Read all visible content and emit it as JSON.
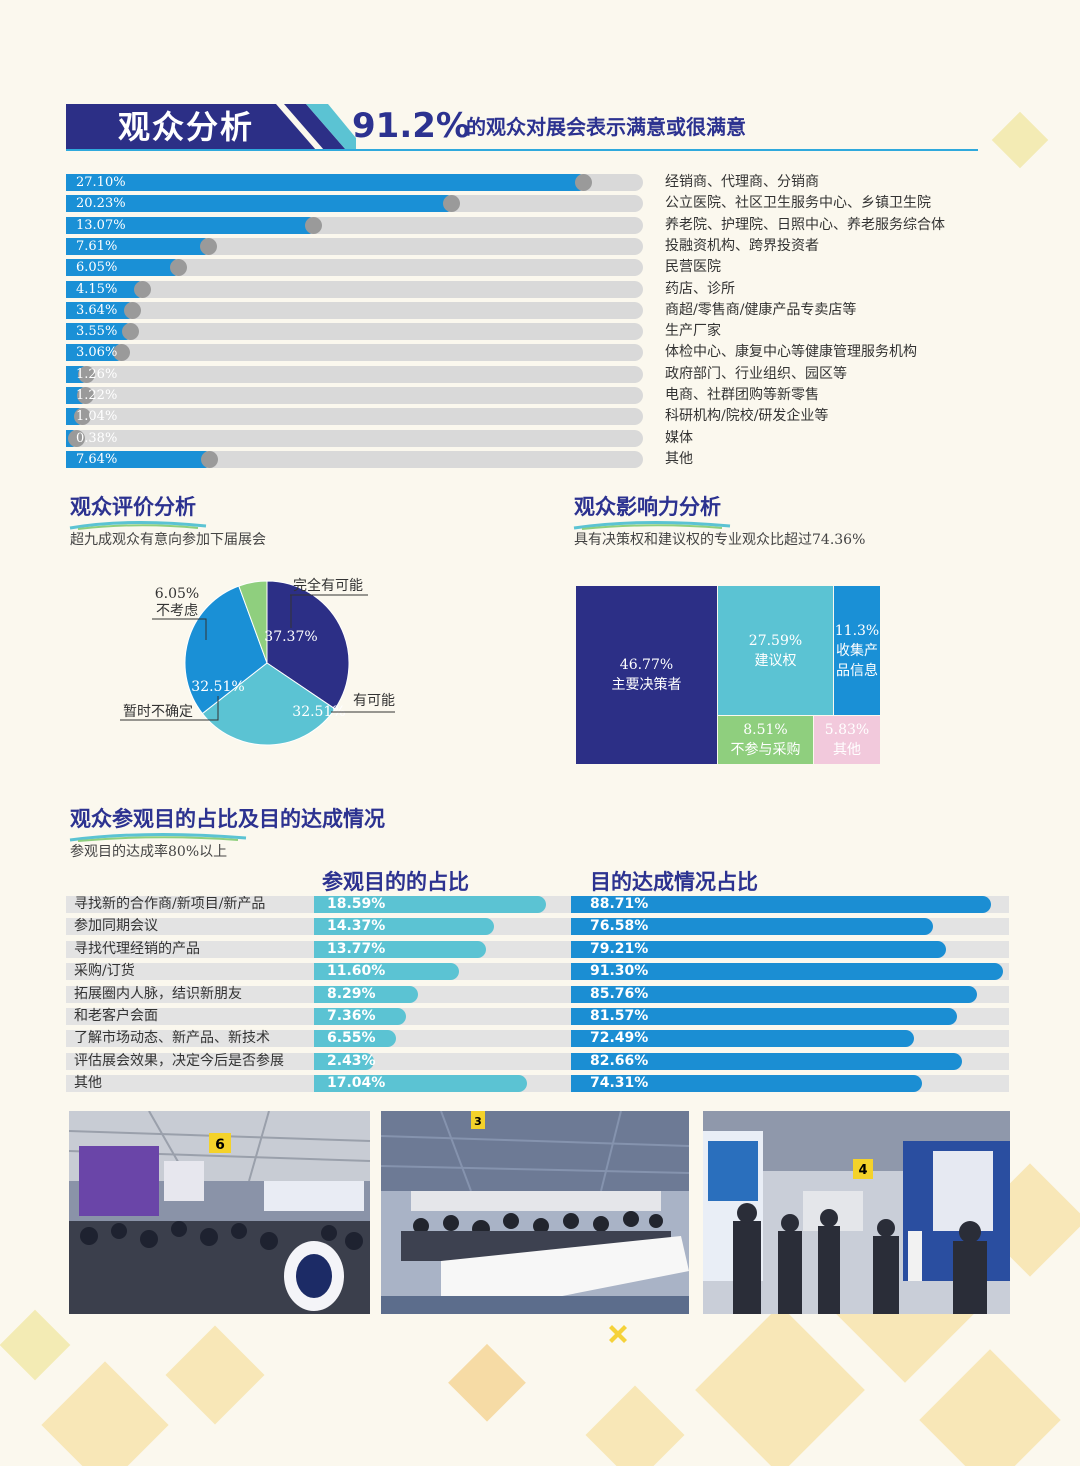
{
  "header": {
    "title": "观众分析",
    "highlight_pct": "91.2%",
    "subtitle": "的观众对展会表示满意或很满意"
  },
  "colors": {
    "navy": "#2c2f86",
    "blue": "#1a90d6",
    "cyan": "#5bc3d3",
    "green": "#8fcf7e",
    "pink": "#f2c9dc",
    "gray": "#d9d9d9"
  },
  "chart_data": [
    {
      "type": "bar",
      "title": "观众分析",
      "orientation": "horizontal",
      "xlim": [
        0,
        30
      ],
      "series": [
        {
          "name": "占比",
          "values": [
            27.1,
            20.23,
            13.07,
            7.61,
            6.05,
            4.15,
            3.64,
            3.55,
            3.06,
            1.26,
            1.22,
            1.04,
            0.38,
            7.64
          ]
        }
      ],
      "value_labels": [
        "27.10%",
        "20.23%",
        "13.07%",
        "7.61%",
        "6.05%",
        "4.15%",
        "3.64%",
        "3.55%",
        "3.06%",
        "1.26%",
        "1.22%",
        "1.04%",
        "0.38%",
        "7.64%"
      ],
      "categories": [
        "经销商、代理商、分销商",
        "公立医院、社区卫生服务中心、乡镇卫生院",
        "养老院、护理院、日照中心、养老服务综合体",
        "投融资机构、跨界投资者",
        "民营医院",
        "药店、诊所",
        "商超/零售商/健康产品专卖店等",
        "生产厂家",
        "体检中心、康复中心等健康管理服务机构",
        "政府部门、行业组织、园区等",
        "电商、社群团购等新零售",
        "科研机构/院校/研发企业等",
        "媒体",
        "其他"
      ]
    },
    {
      "type": "pie",
      "title": "观众评价分析",
      "subtitle": "超九成观众有意向参加下届展会",
      "slices": [
        {
          "label": "完全有可能",
          "value": 37.37,
          "text": "37.37%",
          "color": "#2c2f86"
        },
        {
          "label": "有可能",
          "value": 32.51,
          "text": "32.51%",
          "color": "#5bc3d3"
        },
        {
          "label": "暂时不确定",
          "value": 32.51,
          "text": "32.51%",
          "color": "#1a90d6"
        },
        {
          "label": "不考虑",
          "value": 6.05,
          "text": "6.05%",
          "color": "#8fcf7e"
        }
      ]
    },
    {
      "type": "treemap",
      "title": "观众影响力分析",
      "subtitle": "具有决策权和建议权的专业观众比超过74.36%",
      "cells": [
        {
          "label": "主要决策者",
          "value": 46.77,
          "text": "46.77%",
          "color": "#2c2f86"
        },
        {
          "label": "建议权",
          "value": 27.59,
          "text": "27.59%",
          "color": "#5bc3d3"
        },
        {
          "label": "收集产品信息",
          "label_lines": [
            "收集产",
            "品信息"
          ],
          "value": 11.3,
          "text": "11.3%",
          "color": "#1a90d6"
        },
        {
          "label": "不参与采购",
          "value": 8.51,
          "text": "8.51%",
          "color": "#8fcf7e"
        },
        {
          "label": "其他",
          "value": 5.83,
          "text": "5.83%",
          "color": "#f2c9dc"
        }
      ]
    },
    {
      "type": "bar",
      "title": "观众参观目的占比及目的达成情况",
      "subtitle": "参观目的达成率80%以上",
      "orientation": "horizontal",
      "categories": [
        "寻找新的合作商/新项目/新产品",
        "参加同期会议",
        "寻找代理经销的产品",
        "采购/订货",
        "拓展圈内人脉，结识新朋友",
        "和老客户会面",
        "了解市场动态、新产品、新技术",
        "评估展会效果，决定今后是否参展",
        "其他"
      ],
      "series": [
        {
          "name": "参观目的的占比",
          "values": [
            18.59,
            14.37,
            13.77,
            11.6,
            8.29,
            7.36,
            6.55,
            2.43,
            17.04
          ],
          "labels": [
            "18.59%",
            "14.37%",
            "13.77%",
            "11.60%",
            "8.29%",
            "7.36%",
            "6.55%",
            "2.43%",
            "17.04%"
          ],
          "xlim": [
            0,
            20
          ]
        },
        {
          "name": "目的达成情况占比",
          "values": [
            88.71,
            76.58,
            79.21,
            91.3,
            85.76,
            81.57,
            72.49,
            82.66,
            74.31
          ],
          "labels": [
            "88.71%",
            "76.58%",
            "79.21%",
            "91.30%",
            "85.76%",
            "81.57%",
            "72.49%",
            "82.66%",
            "74.31%"
          ],
          "xlim": [
            0,
            100
          ]
        }
      ]
    }
  ],
  "photos": [
    {
      "name": "exhibition-hall-photo",
      "sign": "6"
    },
    {
      "name": "conference-photo",
      "sign": "3"
    },
    {
      "name": "booth-visitors-photo",
      "sign": "4"
    }
  ]
}
